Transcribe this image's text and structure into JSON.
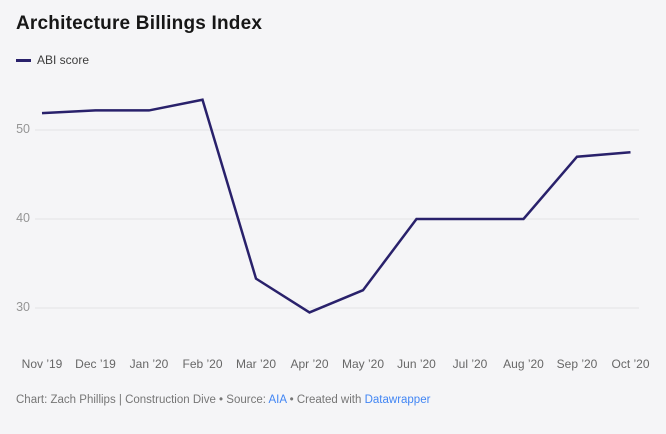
{
  "header": {
    "title": "Architecture Billings Index"
  },
  "legend": {
    "label": "ABI score"
  },
  "chart_data": {
    "type": "line",
    "x": [
      "Nov ’19",
      "Dec ’19",
      "Jan ’20",
      "Feb ’20",
      "Mar ’20",
      "Apr ’20",
      "May ’20",
      "Jun ’20",
      "Jul ’20",
      "Aug ’20",
      "Sep ’20",
      "Oct ’20"
    ],
    "series": [
      {
        "name": "ABI score",
        "color": "#29216b",
        "values": [
          51.9,
          52.2,
          52.2,
          53.4,
          33.3,
          29.5,
          32.0,
          40.0,
          40.0,
          40.0,
          47.0,
          47.5
        ]
      }
    ],
    "yticks": [
      50,
      40,
      30
    ],
    "ylim": [
      27,
      56
    ],
    "grid": "horizontal-only",
    "legend_position": "top-left",
    "title": "Architecture Billings Index"
  },
  "colors": {
    "line": "#29216b",
    "background": "#f5f5f7",
    "gridline": "#e3e3e6",
    "link": "#4286f4"
  },
  "footer": {
    "credit": "Chart: Zach Phillips | Construction Dive",
    "separator": "•",
    "source_label": "Source:",
    "source_link": "AIA",
    "created_label": "Created with",
    "created_link": "Datawrapper"
  }
}
